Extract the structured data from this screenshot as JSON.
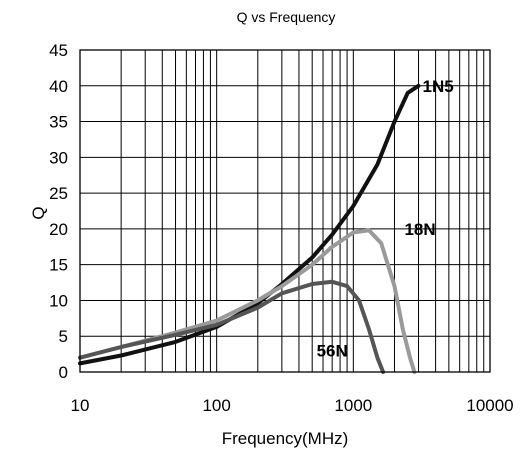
{
  "chart_data": {
    "type": "line",
    "title": "Q vs Frequency",
    "xlabel": "Frequency(MHz)",
    "ylabel": "Q",
    "x_scale": "log",
    "xlim": [
      10,
      10000
    ],
    "ylim": [
      0,
      45
    ],
    "x_ticks": [
      "10",
      "100",
      "1000",
      "10000"
    ],
    "y_ticks": [
      "0",
      "5",
      "10",
      "15",
      "20",
      "25",
      "30",
      "35",
      "40",
      "45"
    ],
    "grid": true,
    "series": [
      {
        "name": "1N5",
        "color": "#111111",
        "x": [
          10,
          20,
          50,
          100,
          200,
          300,
          500,
          700,
          1000,
          1500,
          2000,
          2500,
          3000
        ],
        "y": [
          1.2,
          2.3,
          4.2,
          6.3,
          9.6,
          12.3,
          16.0,
          19.2,
          23.2,
          29.0,
          35.0,
          39.0,
          40.0
        ]
      },
      {
        "name": "18N",
        "color": "#9a9a9a",
        "x": [
          10,
          20,
          50,
          100,
          200,
          300,
          500,
          700,
          1000,
          1300,
          1600,
          2000,
          2300,
          2600,
          2800
        ],
        "y": [
          2.0,
          3.5,
          5.5,
          7.2,
          10.0,
          12.0,
          15.0,
          17.5,
          19.5,
          19.8,
          18.0,
          12.0,
          6.0,
          2.0,
          0.0
        ]
      },
      {
        "name": "56N",
        "color": "#555555",
        "x": [
          10,
          20,
          50,
          100,
          200,
          300,
          500,
          700,
          900,
          1100,
          1300,
          1500,
          1650
        ],
        "y": [
          2.0,
          3.5,
          5.2,
          6.6,
          9.0,
          11.0,
          12.3,
          12.6,
          12.0,
          10.0,
          6.0,
          2.0,
          0.0
        ]
      }
    ]
  }
}
